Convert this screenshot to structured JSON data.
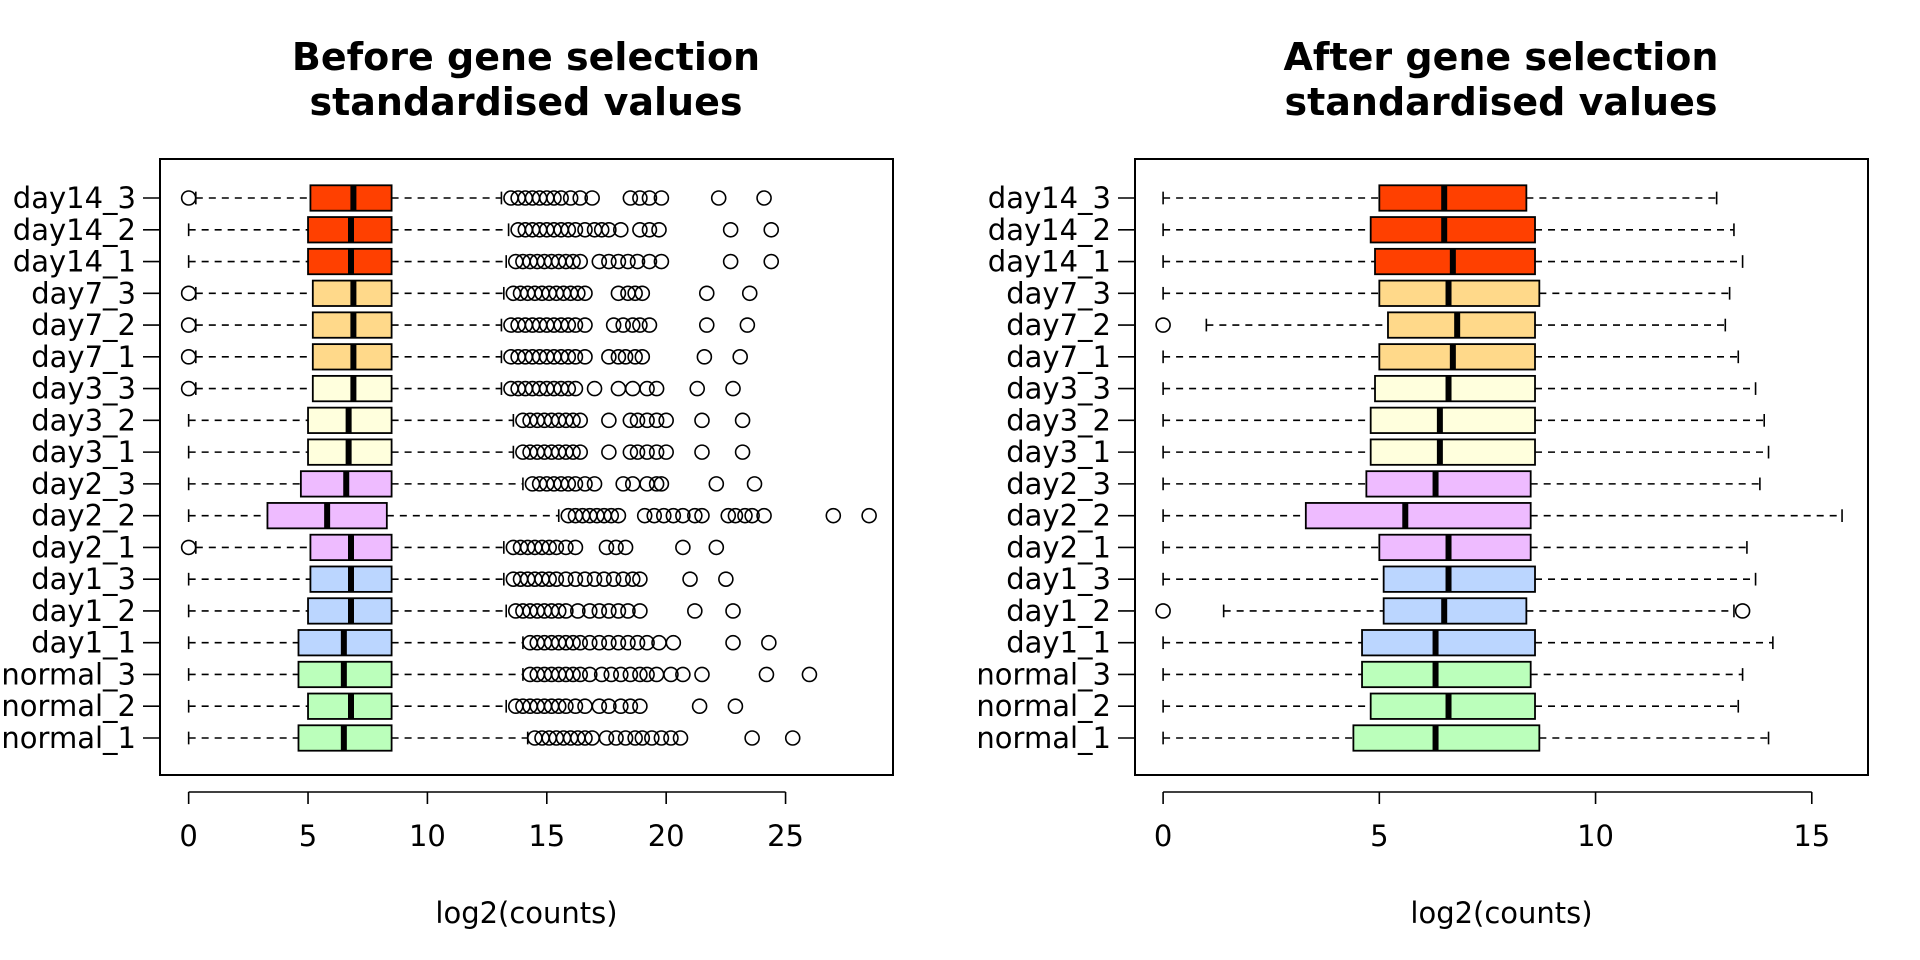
{
  "chart_data": [
    {
      "type": "boxplot",
      "orientation": "horizontal",
      "title": [
        "Before gene selection",
        "standardised values"
      ],
      "xlabel": "log2(counts)",
      "xlim": [
        -1.2,
        29.5
      ],
      "xticks": [
        0,
        5,
        10,
        15,
        20,
        25
      ],
      "grid": false,
      "legend": "none",
      "categories": [
        "normal_1",
        "normal_2",
        "normal_3",
        "day1_1",
        "day1_2",
        "day1_3",
        "day2_1",
        "day2_2",
        "day2_3",
        "day3_1",
        "day3_2",
        "day3_3",
        "day7_1",
        "day7_2",
        "day7_3",
        "day14_1",
        "day14_2",
        "day14_3"
      ],
      "category_labels": [
        "normal_1",
        "normal_2",
        "normal_3",
        "day1_1",
        "day1_2",
        "day1_3",
        "day2_1",
        "day2_2",
        "day2_3",
        "day3_1",
        "day3_2",
        "day3_3",
        "day7_1",
        "day7_2",
        "day7_3",
        "day14_1",
        "day14_2",
        "day14_3"
      ],
      "colors": [
        "#bbffbb",
        "#bbffbb",
        "#bbffbb",
        "#bbd6ff",
        "#bbd6ff",
        "#bbd6ff",
        "#eebbff",
        "#eebbff",
        "#eebbff",
        "#ffffdd",
        "#ffffdd",
        "#ffffdd",
        "#ffd98a",
        "#ffd98a",
        "#ffd98a",
        "#ff4000",
        "#ff4000",
        "#ff4000"
      ],
      "boxes": [
        {
          "min": 0,
          "q1": 4.6,
          "median": 6.5,
          "q3": 8.5,
          "max": 14.2,
          "outliers_low": [],
          "outliers_high": [
            14.5,
            14.8,
            15.1,
            15.4,
            15.7,
            16.0,
            16.3,
            16.6,
            16.9,
            17.5,
            17.9,
            18.3,
            18.7,
            19.0,
            19.4,
            19.8,
            20.2,
            20.6,
            23.6,
            25.3
          ]
        },
        {
          "min": 0,
          "q1": 5.0,
          "median": 6.8,
          "q3": 8.5,
          "max": 13.3,
          "outliers_low": [],
          "outliers_high": [
            13.7,
            14.0,
            14.3,
            14.6,
            14.9,
            15.2,
            15.5,
            15.8,
            16.2,
            16.6,
            17.2,
            17.6,
            18.1,
            18.5,
            18.9,
            21.4,
            22.9
          ]
        },
        {
          "min": 0,
          "q1": 4.6,
          "median": 6.5,
          "q3": 8.5,
          "max": 14.0,
          "outliers_low": [],
          "outliers_high": [
            14.3,
            14.6,
            14.9,
            15.2,
            15.5,
            15.8,
            16.1,
            16.4,
            16.8,
            17.3,
            17.7,
            18.1,
            18.5,
            18.9,
            19.2,
            19.6,
            20.2,
            20.7,
            21.5,
            24.2,
            26.0
          ]
        },
        {
          "min": 0,
          "q1": 4.6,
          "median": 6.5,
          "q3": 8.5,
          "max": 14.0,
          "outliers_low": [],
          "outliers_high": [
            14.3,
            14.6,
            14.9,
            15.2,
            15.5,
            15.8,
            16.1,
            16.4,
            16.8,
            17.2,
            17.6,
            18.0,
            18.4,
            18.8,
            19.2,
            19.7,
            20.3,
            22.8,
            24.3
          ]
        },
        {
          "min": 0,
          "q1": 5.0,
          "median": 6.8,
          "q3": 8.5,
          "max": 13.3,
          "outliers_low": [],
          "outliers_high": [
            13.7,
            14.0,
            14.3,
            14.6,
            14.9,
            15.2,
            15.5,
            15.8,
            16.3,
            16.8,
            17.2,
            17.6,
            18.0,
            18.4,
            18.9,
            21.2,
            22.8
          ]
        },
        {
          "min": 0,
          "q1": 5.1,
          "median": 6.8,
          "q3": 8.5,
          "max": 13.2,
          "outliers_low": [],
          "outliers_high": [
            13.6,
            13.9,
            14.2,
            14.5,
            14.8,
            15.1,
            15.4,
            15.8,
            16.2,
            16.6,
            17.0,
            17.4,
            17.8,
            18.2,
            18.6,
            18.9,
            21.0,
            22.5
          ]
        },
        {
          "min": 0.3,
          "q1": 5.1,
          "median": 6.8,
          "q3": 8.5,
          "max": 13.2,
          "outliers_low": [
            0
          ],
          "outliers_high": [
            13.6,
            13.9,
            14.2,
            14.5,
            14.8,
            15.1,
            15.4,
            15.8,
            16.2,
            17.5,
            17.9,
            18.3,
            20.7,
            22.1
          ]
        },
        {
          "min": 0,
          "q1": 3.3,
          "median": 5.8,
          "q3": 8.3,
          "max": 15.5,
          "outliers_low": [],
          "outliers_high": [
            15.9,
            16.2,
            16.5,
            16.8,
            17.1,
            17.4,
            17.7,
            18.0,
            19.1,
            19.5,
            19.9,
            20.3,
            20.7,
            21.2,
            21.5,
            22.6,
            22.9,
            23.3,
            23.6,
            24.1,
            27.0,
            28.5
          ]
        },
        {
          "min": 0,
          "q1": 4.7,
          "median": 6.6,
          "q3": 8.5,
          "max": 14.0,
          "outliers_low": [],
          "outliers_high": [
            14.4,
            14.7,
            15.0,
            15.3,
            15.6,
            15.9,
            16.2,
            16.6,
            17.0,
            18.2,
            18.6,
            19.2,
            19.6,
            19.8,
            22.1,
            23.7
          ]
        },
        {
          "min": 0,
          "q1": 5.0,
          "median": 6.7,
          "q3": 8.5,
          "max": 13.6,
          "outliers_low": [],
          "outliers_high": [
            14.0,
            14.3,
            14.6,
            14.9,
            15.2,
            15.5,
            15.8,
            16.1,
            16.4,
            17.6,
            18.5,
            18.8,
            19.2,
            19.6,
            20.0,
            21.5,
            23.2
          ]
        },
        {
          "min": 0,
          "q1": 5.0,
          "median": 6.7,
          "q3": 8.5,
          "max": 13.6,
          "outliers_low": [],
          "outliers_high": [
            14.0,
            14.3,
            14.6,
            14.9,
            15.2,
            15.5,
            15.8,
            16.1,
            16.4,
            17.6,
            18.5,
            18.8,
            19.2,
            19.6,
            20.0,
            21.5,
            23.2
          ]
        },
        {
          "min": 0.3,
          "q1": 5.2,
          "median": 6.9,
          "q3": 8.5,
          "max": 13.1,
          "outliers_low": [
            0
          ],
          "outliers_high": [
            13.5,
            13.8,
            14.1,
            14.4,
            14.7,
            15.0,
            15.3,
            15.6,
            15.9,
            16.2,
            17.0,
            18.0,
            18.6,
            19.2,
            19.6,
            21.3,
            22.8
          ]
        },
        {
          "min": 0.3,
          "q1": 5.2,
          "median": 6.9,
          "q3": 8.5,
          "max": 13.1,
          "outliers_low": [
            0
          ],
          "outliers_high": [
            13.5,
            13.8,
            14.1,
            14.4,
            14.7,
            15.0,
            15.3,
            15.6,
            15.9,
            16.2,
            16.6,
            17.6,
            18.0,
            18.3,
            18.7,
            19.0,
            21.6,
            23.1
          ]
        },
        {
          "min": 0.3,
          "q1": 5.2,
          "median": 6.9,
          "q3": 8.5,
          "max": 13.1,
          "outliers_low": [
            0
          ],
          "outliers_high": [
            13.5,
            13.8,
            14.1,
            14.4,
            14.7,
            15.0,
            15.3,
            15.6,
            15.9,
            16.2,
            16.6,
            17.8,
            18.2,
            18.6,
            18.9,
            19.3,
            21.7,
            23.4
          ]
        },
        {
          "min": 0.3,
          "q1": 5.2,
          "median": 6.9,
          "q3": 8.5,
          "max": 13.2,
          "outliers_low": [
            0
          ],
          "outliers_high": [
            13.6,
            13.9,
            14.2,
            14.5,
            14.8,
            15.1,
            15.4,
            15.7,
            16.0,
            16.3,
            16.6,
            18.0,
            18.4,
            18.7,
            19.0,
            21.7,
            23.5
          ]
        },
        {
          "min": 0,
          "q1": 5.0,
          "median": 6.8,
          "q3": 8.5,
          "max": 13.3,
          "outliers_low": [],
          "outliers_high": [
            13.7,
            14.0,
            14.3,
            14.6,
            14.9,
            15.2,
            15.5,
            15.8,
            16.1,
            16.4,
            17.2,
            17.6,
            18.0,
            18.4,
            18.8,
            19.3,
            19.8,
            22.7,
            24.4
          ]
        },
        {
          "min": 0,
          "q1": 5.0,
          "median": 6.8,
          "q3": 8.5,
          "max": 13.4,
          "outliers_low": [],
          "outliers_high": [
            13.8,
            14.1,
            14.4,
            14.7,
            15.0,
            15.3,
            15.6,
            15.9,
            16.2,
            16.6,
            17.0,
            17.3,
            17.6,
            18.1,
            18.9,
            19.3,
            19.7,
            22.7,
            24.4
          ]
        },
        {
          "min": 0.3,
          "q1": 5.1,
          "median": 6.9,
          "q3": 8.5,
          "max": 13.1,
          "outliers_low": [
            0
          ],
          "outliers_high": [
            13.5,
            13.8,
            14.1,
            14.4,
            14.7,
            15.0,
            15.3,
            15.6,
            16.0,
            16.4,
            16.9,
            18.5,
            18.9,
            19.3,
            19.8,
            22.2,
            24.1
          ]
        }
      ]
    },
    {
      "type": "boxplot",
      "orientation": "horizontal",
      "title": [
        "After gene selection",
        "standardised values"
      ],
      "xlabel": "log2(counts)",
      "xlim": [
        -0.65,
        16.3
      ],
      "xticks": [
        0,
        5,
        10,
        15
      ],
      "grid": false,
      "legend": "none",
      "categories": [
        "normal_1",
        "normal_2",
        "normal_3",
        "day1_1",
        "day1_2",
        "day1_3",
        "day2_1",
        "day2_2",
        "day2_3",
        "day3_1",
        "day3_2",
        "day3_3",
        "day7_1",
        "day7_2",
        "day7_3",
        "day14_1",
        "day14_2",
        "day14_3"
      ],
      "category_labels": [
        "normal_1",
        "normal_2",
        "normal_3",
        "day1_1",
        "day1_2",
        "day1_3",
        "day2_1",
        "day2_2",
        "day2_3",
        "day3_1",
        "day3_2",
        "day3_3",
        "day7_1",
        "day7_2",
        "day7_3",
        "day14_1",
        "day14_2",
        "day14_3"
      ],
      "colors": [
        "#bbffbb",
        "#bbffbb",
        "#bbffbb",
        "#bbd6ff",
        "#bbd6ff",
        "#bbd6ff",
        "#eebbff",
        "#eebbff",
        "#eebbff",
        "#ffffdd",
        "#ffffdd",
        "#ffffdd",
        "#ffd98a",
        "#ffd98a",
        "#ffd98a",
        "#ff4000",
        "#ff4000",
        "#ff4000"
      ],
      "boxes": [
        {
          "min": 0,
          "q1": 4.4,
          "median": 6.3,
          "q3": 8.7,
          "max": 14.0,
          "outliers_low": [],
          "outliers_high": []
        },
        {
          "min": 0,
          "q1": 4.8,
          "median": 6.6,
          "q3": 8.6,
          "max": 13.3,
          "outliers_low": [],
          "outliers_high": []
        },
        {
          "min": 0,
          "q1": 4.6,
          "median": 6.3,
          "q3": 8.5,
          "max": 13.4,
          "outliers_low": [],
          "outliers_high": []
        },
        {
          "min": 0,
          "q1": 4.6,
          "median": 6.3,
          "q3": 8.6,
          "max": 14.1,
          "outliers_low": [],
          "outliers_high": []
        },
        {
          "min": 1.4,
          "q1": 5.1,
          "median": 6.5,
          "q3": 8.4,
          "max": 13.2,
          "outliers_low": [
            0
          ],
          "outliers_high": [
            13.4
          ]
        },
        {
          "min": 0,
          "q1": 5.1,
          "median": 6.6,
          "q3": 8.6,
          "max": 13.7,
          "outliers_low": [],
          "outliers_high": []
        },
        {
          "min": 0,
          "q1": 5.0,
          "median": 6.6,
          "q3": 8.5,
          "max": 13.5,
          "outliers_low": [],
          "outliers_high": []
        },
        {
          "min": 0,
          "q1": 3.3,
          "median": 5.6,
          "q3": 8.5,
          "max": 15.7,
          "outliers_low": [],
          "outliers_high": []
        },
        {
          "min": 0,
          "q1": 4.7,
          "median": 6.3,
          "q3": 8.5,
          "max": 13.8,
          "outliers_low": [],
          "outliers_high": []
        },
        {
          "min": 0,
          "q1": 4.8,
          "median": 6.4,
          "q3": 8.6,
          "max": 14.0,
          "outliers_low": [],
          "outliers_high": []
        },
        {
          "min": 0,
          "q1": 4.8,
          "median": 6.4,
          "q3": 8.6,
          "max": 13.9,
          "outliers_low": [],
          "outliers_high": []
        },
        {
          "min": 0,
          "q1": 4.9,
          "median": 6.6,
          "q3": 8.6,
          "max": 13.7,
          "outliers_low": [],
          "outliers_high": []
        },
        {
          "min": 0,
          "q1": 5.0,
          "median": 6.7,
          "q3": 8.6,
          "max": 13.3,
          "outliers_low": [],
          "outliers_high": []
        },
        {
          "min": 1.0,
          "q1": 5.2,
          "median": 6.8,
          "q3": 8.6,
          "max": 13.0,
          "outliers_low": [
            0
          ],
          "outliers_high": []
        },
        {
          "min": 0,
          "q1": 5.0,
          "median": 6.6,
          "q3": 8.7,
          "max": 13.1,
          "outliers_low": [],
          "outliers_high": []
        },
        {
          "min": 0,
          "q1": 4.9,
          "median": 6.7,
          "q3": 8.6,
          "max": 13.4,
          "outliers_low": [],
          "outliers_high": []
        },
        {
          "min": 0,
          "q1": 4.8,
          "median": 6.5,
          "q3": 8.6,
          "max": 13.2,
          "outliers_low": [],
          "outliers_high": []
        },
        {
          "min": 0,
          "q1": 5.0,
          "median": 6.5,
          "q3": 8.4,
          "max": 12.8,
          "outliers_low": [],
          "outliers_high": []
        }
      ]
    }
  ]
}
